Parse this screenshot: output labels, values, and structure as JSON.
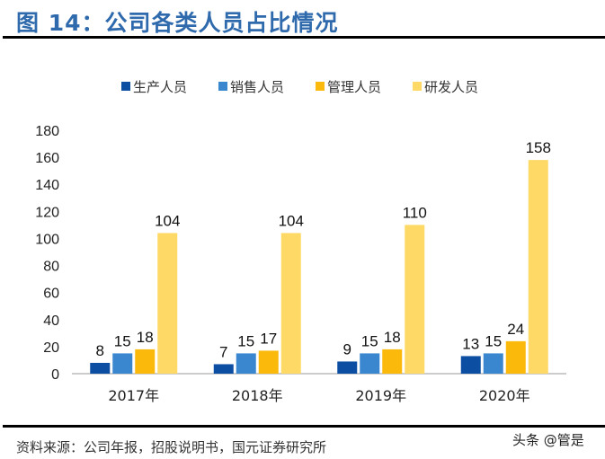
{
  "title": "图 14：公司各类人员占比情况",
  "source": "资料来源：公司年报，招股说明书，国元证券研究所",
  "watermark": "头条 @管是",
  "chart_data": {
    "type": "bar",
    "categories": [
      "2017年",
      "2018年",
      "2019年",
      "2020年"
    ],
    "series": [
      {
        "name": "生产人员",
        "color": "#0b4ea2",
        "values": [
          8,
          7,
          9,
          13
        ]
      },
      {
        "name": "销售人员",
        "color": "#3a87d0",
        "values": [
          15,
          15,
          15,
          15
        ]
      },
      {
        "name": "管理人员",
        "color": "#fbb90c",
        "values": [
          18,
          17,
          18,
          24
        ]
      },
      {
        "name": "研发人员",
        "color": "#fed966",
        "values": [
          104,
          104,
          110,
          158
        ]
      }
    ],
    "ylim": [
      0,
      180
    ],
    "yticks": [
      0,
      20,
      40,
      60,
      80,
      100,
      120,
      140,
      160,
      180
    ],
    "legend": "top",
    "grid": false
  }
}
